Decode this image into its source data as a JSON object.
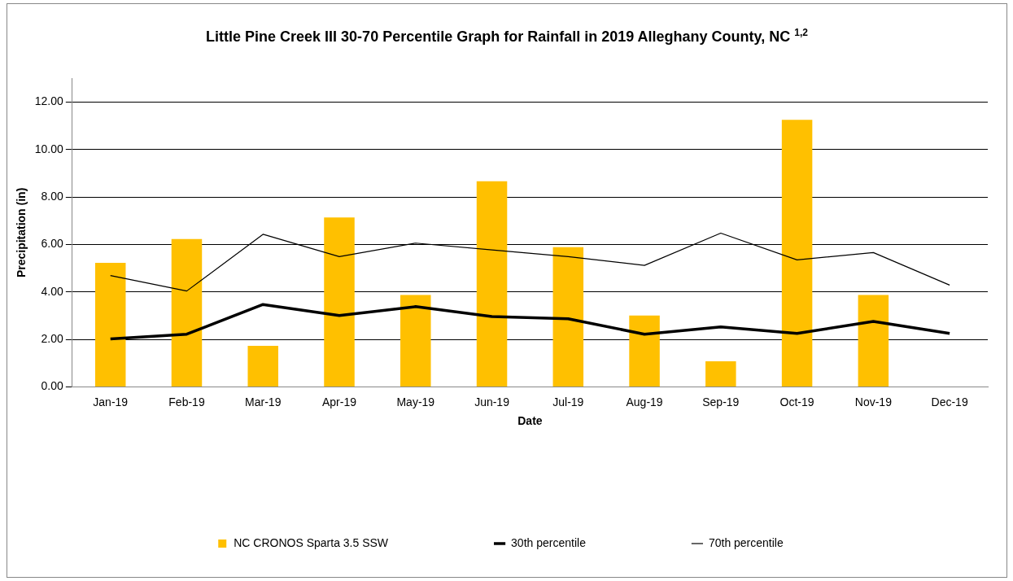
{
  "chart_data": {
    "type": "bar",
    "title": "Little Pine Creek III 30-70 Percentile Graph for Rainfall in 2019 Alleghany County, NC $^{1,2}$",
    "xlabel": "Date",
    "ylabel": "Precipitation (in)",
    "categories": [
      "Jan-19",
      "Feb-19",
      "Mar-19",
      "Apr-19",
      "May-19",
      "Jun-19",
      "Jul-19",
      "Aug-19",
      "Sep-19",
      "Oct-19",
      "Nov-19",
      "Dec-19"
    ],
    "series": [
      {
        "name": "NC CRONOS Sparta 3.5 SSW",
        "color": "#ffc000",
        "values": [
          5.23,
          6.23,
          1.73,
          7.14,
          3.87,
          8.67,
          5.89,
          3.01,
          1.08,
          11.26,
          3.87,
          null
        ]
      },
      {
        "name": "30th percentile",
        "type": "line",
        "color": "#000000",
        "values": [
          2.02,
          2.22,
          3.47,
          3.01,
          3.38,
          2.96,
          2.87,
          2.22,
          2.53,
          2.25,
          2.76,
          2.25
        ]
      },
      {
        "name": "70th percentile",
        "type": "line",
        "color": "#000000",
        "values": [
          4.69,
          4.04,
          6.43,
          5.49,
          6.06,
          5.77,
          5.49,
          5.12,
          6.48,
          5.35,
          5.66,
          4.29
        ]
      }
    ],
    "ylim": [
      0,
      13
    ],
    "yticks": [
      {
        "value": 0,
        "label": "0.00"
      },
      {
        "value": 2,
        "label": "2.00"
      },
      {
        "value": 4,
        "label": "4.00"
      },
      {
        "value": 6,
        "label": "6.00"
      },
      {
        "value": 8,
        "label": "8.00"
      },
      {
        "value": 10,
        "label": "10.00"
      },
      {
        "value": 12,
        "label": "12.00"
      }
    ],
    "grid": "y",
    "legend": "bottom",
    "marker": "none"
  }
}
